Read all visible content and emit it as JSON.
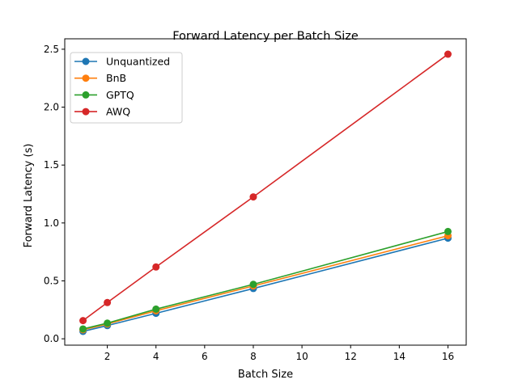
{
  "chart_data": {
    "type": "line",
    "title": "Forward Latency per Batch Size",
    "xlabel": "Batch Size",
    "ylabel": "Forward Latency (s)",
    "x": [
      1,
      2,
      4,
      8,
      16
    ],
    "xlim": [
      0.25,
      16.75
    ],
    "ylim": [
      -0.055,
      2.59
    ],
    "xticks": [
      2,
      4,
      6,
      8,
      10,
      12,
      14,
      16
    ],
    "yticks": [
      0.0,
      0.5,
      1.0,
      1.5,
      2.0,
      2.5
    ],
    "ytick_labels": [
      "0.0",
      "0.5",
      "1.0",
      "1.5",
      "2.0",
      "2.5"
    ],
    "grid": false,
    "legend_position": "top-left",
    "series": [
      {
        "name": "Unquantized",
        "color": "#1f77b4",
        "values": [
          0.064,
          0.114,
          0.22,
          0.434,
          0.869
        ]
      },
      {
        "name": "BnB",
        "color": "#ff7f0e",
        "values": [
          0.078,
          0.128,
          0.242,
          0.456,
          0.89
        ]
      },
      {
        "name": "GPTQ",
        "color": "#2ca02c",
        "values": [
          0.085,
          0.135,
          0.256,
          0.47,
          0.926
        ]
      },
      {
        "name": "AWQ",
        "color": "#d62728",
        "values": [
          0.157,
          0.313,
          0.62,
          1.225,
          2.457
        ]
      }
    ]
  }
}
